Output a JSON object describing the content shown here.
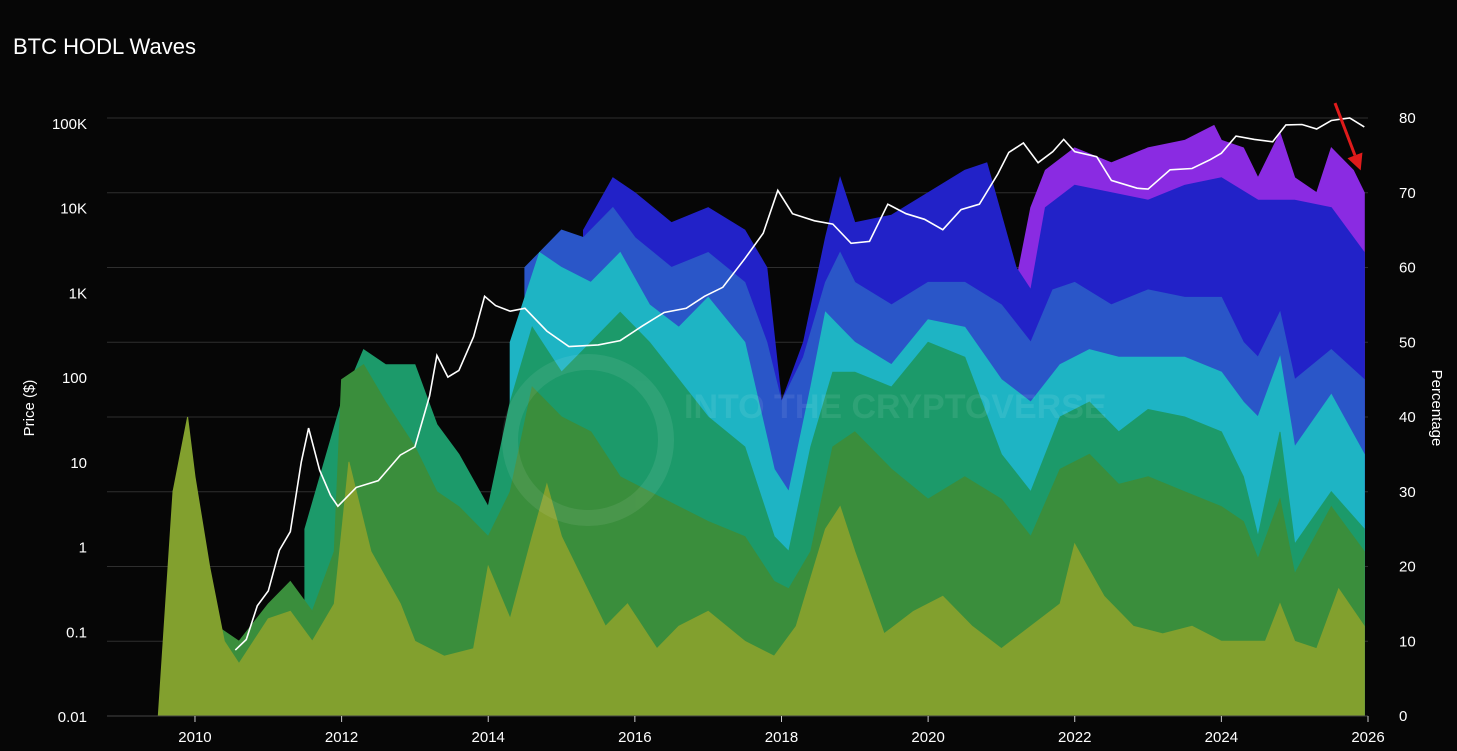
{
  "chart_data": {
    "type": "area",
    "title": "BTC HODL Waves",
    "x": {
      "ticks": [
        2010,
        2012,
        2014,
        2016,
        2018,
        2020,
        2022,
        2024,
        2026
      ],
      "range": [
        2008.8,
        2026.0
      ]
    },
    "y_left": {
      "label": "Price ($)",
      "scale": "log",
      "range": [
        0.01,
        100000
      ],
      "ticks": [
        {
          "value": 0.01,
          "label": "0.01"
        },
        {
          "value": 0.1,
          "label": "0.1"
        },
        {
          "value": 1,
          "label": "1"
        },
        {
          "value": 10,
          "label": "10"
        },
        {
          "value": 100,
          "label": "100"
        },
        {
          "value": 1000,
          "label": "1K"
        },
        {
          "value": 10000,
          "label": "10K"
        },
        {
          "value": 100000,
          "label": "100K"
        }
      ]
    },
    "y_right": {
      "label": "Percentage",
      "range": [
        0,
        80
      ],
      "ticks": [
        0,
        10,
        20,
        30,
        40,
        50,
        60,
        70,
        80
      ]
    },
    "grid": true,
    "watermark": "INTO THE CRYPTOVERSE",
    "colors": {
      "background": "#060606",
      "price_line": "#ffffff",
      "arrow": "#e01b1b"
    },
    "series": [
      {
        "color": "#8a2be2",
        "x": [
          2020.8,
          2021.2,
          2021.4,
          2021.6,
          2022.0,
          2022.5,
          2023.0,
          2023.5,
          2023.9,
          2024.0,
          2024.3,
          2024.5,
          2024.8,
          2025.0,
          2025.3,
          2025.5,
          2025.8,
          2025.95
        ],
        "y": [
          62,
          58,
          68,
          73,
          76,
          74,
          76,
          77,
          79,
          77,
          76,
          72,
          78,
          72,
          70,
          76,
          73,
          70
        ]
      },
      {
        "color": "#2222c8",
        "x": [
          2015.3,
          2015.7,
          2016.0,
          2016.5,
          2017.0,
          2017.5,
          2017.8,
          2018.0,
          2018.3,
          2018.6,
          2018.8,
          2019.0,
          2019.5,
          2020.0,
          2020.5,
          2020.8,
          2021.2,
          2021.4,
          2021.6,
          2022.0,
          2022.5,
          2023.0,
          2023.5,
          2024.0,
          2024.5,
          2025.0,
          2025.5,
          2025.95
        ],
        "y": [
          65,
          72,
          70,
          66,
          68,
          65,
          60,
          42,
          50,
          64,
          72,
          66,
          67,
          70,
          73,
          74,
          60,
          57,
          68,
          71,
          70,
          69,
          71,
          72,
          69,
          69,
          68,
          62
        ]
      },
      {
        "color": "#2a56c8",
        "x": [
          2014.5,
          2015.0,
          2015.3,
          2015.7,
          2016.0,
          2016.5,
          2017.0,
          2017.5,
          2017.8,
          2018.0,
          2018.3,
          2018.6,
          2018.8,
          2019.0,
          2019.5,
          2020.0,
          2020.5,
          2021.0,
          2021.4,
          2021.7,
          2022.0,
          2022.5,
          2023.0,
          2023.5,
          2024.0,
          2024.3,
          2024.5,
          2024.8,
          2025.0,
          2025.5,
          2025.95
        ],
        "y": [
          60,
          65,
          64,
          68,
          64,
          60,
          62,
          58,
          50,
          42,
          48,
          58,
          62,
          58,
          55,
          58,
          58,
          55,
          50,
          57,
          58,
          55,
          57,
          56,
          56,
          50,
          48,
          54,
          45,
          49,
          45
        ]
      },
      {
        "color": "#1eb4c4",
        "x": [
          2014.3,
          2014.7,
          2015.0,
          2015.4,
          2015.8,
          2016.2,
          2016.6,
          2017.0,
          2017.5,
          2017.9,
          2018.1,
          2018.4,
          2018.6,
          2018.8,
          2019.0,
          2019.5,
          2020.0,
          2020.5,
          2021.0,
          2021.4,
          2021.8,
          2022.2,
          2022.6,
          2023.0,
          2023.5,
          2024.0,
          2024.3,
          2024.5,
          2024.8,
          2025.0,
          2025.5,
          2025.95
        ],
        "y": [
          50,
          62,
          60,
          58,
          62,
          55,
          52,
          56,
          50,
          33,
          30,
          44,
          54,
          52,
          50,
          47,
          53,
          52,
          45,
          42,
          47,
          49,
          48,
          48,
          48,
          46,
          42,
          40,
          48,
          36,
          43,
          35
        ]
      },
      {
        "color": "#1c9a6a",
        "x": [
          2011.5,
          2012.0,
          2012.3,
          2012.6,
          2013.0,
          2013.3,
          2013.6,
          2014.0,
          2014.3,
          2014.6,
          2015.0,
          2015.4,
          2015.8,
          2016.2,
          2016.6,
          2017.0,
          2017.5,
          2017.9,
          2018.1,
          2018.4,
          2018.7,
          2019.0,
          2019.5,
          2020.0,
          2020.5,
          2021.0,
          2021.4,
          2021.8,
          2022.2,
          2022.6,
          2023.0,
          2023.5,
          2024.0,
          2024.3,
          2024.5,
          2024.8,
          2025.0,
          2025.5,
          2025.95
        ],
        "y": [
          25,
          42,
          49,
          47,
          47,
          39,
          35,
          28,
          42,
          52,
          46,
          50,
          54,
          50,
          45,
          40,
          36,
          24,
          22,
          36,
          46,
          46,
          44,
          50,
          48,
          35,
          30,
          40,
          42,
          38,
          41,
          40,
          38,
          32,
          24,
          38,
          23,
          30,
          25
        ]
      },
      {
        "color": "#3a8e3c",
        "x": [
          2009.7,
          2010.0,
          2010.3,
          2010.6,
          2011.0,
          2011.3,
          2011.6,
          2011.9,
          2012.0,
          2012.3,
          2012.6,
          2013.0,
          2013.3,
          2013.6,
          2014.0,
          2014.3,
          2014.6,
          2015.0,
          2015.4,
          2015.8,
          2016.2,
          2016.6,
          2017.0,
          2017.5,
          2017.9,
          2018.1,
          2018.4,
          2018.7,
          2019.0,
          2019.5,
          2020.0,
          2020.5,
          2021.0,
          2021.4,
          2021.8,
          2022.2,
          2022.6,
          2023.0,
          2023.5,
          2024.0,
          2024.3,
          2024.5,
          2024.8,
          2025.0,
          2025.5,
          2025.95
        ],
        "y": [
          30,
          25,
          12,
          10,
          15,
          18,
          14,
          22,
          45,
          47,
          42,
          36,
          30,
          28,
          24,
          30,
          44,
          40,
          38,
          32,
          30,
          28,
          26,
          24,
          18,
          17,
          22,
          36,
          38,
          33,
          29,
          32,
          29,
          24,
          33,
          35,
          31,
          32,
          30,
          28,
          26,
          21,
          29,
          19,
          28,
          22
        ]
      },
      {
        "color": "#82a02e",
        "x": [
          2009.5,
          2009.7,
          2009.9,
          2010.0,
          2010.2,
          2010.4,
          2010.6,
          2011.0,
          2011.3,
          2011.6,
          2011.9,
          2012.1,
          2012.4,
          2012.8,
          2013.0,
          2013.4,
          2013.8,
          2014.0,
          2014.3,
          2014.6,
          2014.8,
          2015.0,
          2015.3,
          2015.6,
          2015.9,
          2016.3,
          2016.6,
          2017.0,
          2017.5,
          2017.9,
          2018.2,
          2018.6,
          2018.8,
          2019.0,
          2019.4,
          2019.8,
          2020.2,
          2020.6,
          2021.0,
          2021.4,
          2021.8,
          2022.0,
          2022.4,
          2022.8,
          2023.2,
          2023.6,
          2024.0,
          2024.3,
          2024.6,
          2024.8,
          2025.0,
          2025.3,
          2025.6,
          2025.95
        ],
        "y": [
          0,
          30,
          40,
          32,
          20,
          10,
          7,
          13,
          14,
          10,
          15,
          34,
          22,
          15,
          10,
          8,
          9,
          20,
          13,
          24,
          31,
          24,
          18,
          12,
          15,
          9,
          12,
          14,
          10,
          8,
          12,
          25,
          28,
          22,
          11,
          14,
          16,
          12,
          9,
          12,
          15,
          23,
          16,
          12,
          11,
          12,
          10,
          10,
          10,
          15,
          10,
          9,
          17,
          12
        ]
      }
    ],
    "price": [
      [
        2010.55,
        0.06
      ],
      [
        2010.7,
        0.08
      ],
      [
        2010.85,
        0.2
      ],
      [
        2011.0,
        0.3
      ],
      [
        2011.15,
        0.9
      ],
      [
        2011.3,
        1.5
      ],
      [
        2011.45,
        10
      ],
      [
        2011.55,
        25
      ],
      [
        2011.7,
        8
      ],
      [
        2011.85,
        4
      ],
      [
        2011.95,
        3
      ],
      [
        2012.2,
        5
      ],
      [
        2012.5,
        6
      ],
      [
        2012.8,
        12
      ],
      [
        2013.0,
        15
      ],
      [
        2013.2,
        60
      ],
      [
        2013.3,
        180
      ],
      [
        2013.45,
        100
      ],
      [
        2013.6,
        120
      ],
      [
        2013.8,
        300
      ],
      [
        2013.95,
        900
      ],
      [
        2014.1,
        700
      ],
      [
        2014.3,
        600
      ],
      [
        2014.5,
        650
      ],
      [
        2014.8,
        350
      ],
      [
        2015.1,
        230
      ],
      [
        2015.5,
        240
      ],
      [
        2015.8,
        270
      ],
      [
        2016.1,
        400
      ],
      [
        2016.4,
        580
      ],
      [
        2016.7,
        650
      ],
      [
        2016.95,
        900
      ],
      [
        2017.2,
        1150
      ],
      [
        2017.5,
        2500
      ],
      [
        2017.75,
        5000
      ],
      [
        2017.95,
        16000
      ],
      [
        2018.15,
        8500
      ],
      [
        2018.45,
        7000
      ],
      [
        2018.7,
        6400
      ],
      [
        2018.95,
        3800
      ],
      [
        2019.2,
        4000
      ],
      [
        2019.45,
        11000
      ],
      [
        2019.7,
        8500
      ],
      [
        2019.95,
        7300
      ],
      [
        2020.2,
        5500
      ],
      [
        2020.45,
        9500
      ],
      [
        2020.7,
        11000
      ],
      [
        2020.95,
        25000
      ],
      [
        2021.1,
        45000
      ],
      [
        2021.3,
        58000
      ],
      [
        2021.5,
        34000
      ],
      [
        2021.7,
        46000
      ],
      [
        2021.85,
        64000
      ],
      [
        2022.0,
        46000
      ],
      [
        2022.3,
        40000
      ],
      [
        2022.5,
        21000
      ],
      [
        2022.85,
        17000
      ],
      [
        2023.0,
        16600
      ],
      [
        2023.3,
        28000
      ],
      [
        2023.6,
        29000
      ],
      [
        2023.85,
        37000
      ],
      [
        2024.0,
        44000
      ],
      [
        2024.2,
        70000
      ],
      [
        2024.45,
        64000
      ],
      [
        2024.7,
        60000
      ],
      [
        2024.88,
        95000
      ],
      [
        2025.1,
        96000
      ],
      [
        2025.3,
        85000
      ],
      [
        2025.5,
        107000
      ],
      [
        2025.75,
        115000
      ],
      [
        2025.95,
        90000
      ]
    ],
    "arrow": {
      "from": [
        2025.55,
        82
      ],
      "to": [
        2025.9,
        73
      ]
    }
  }
}
